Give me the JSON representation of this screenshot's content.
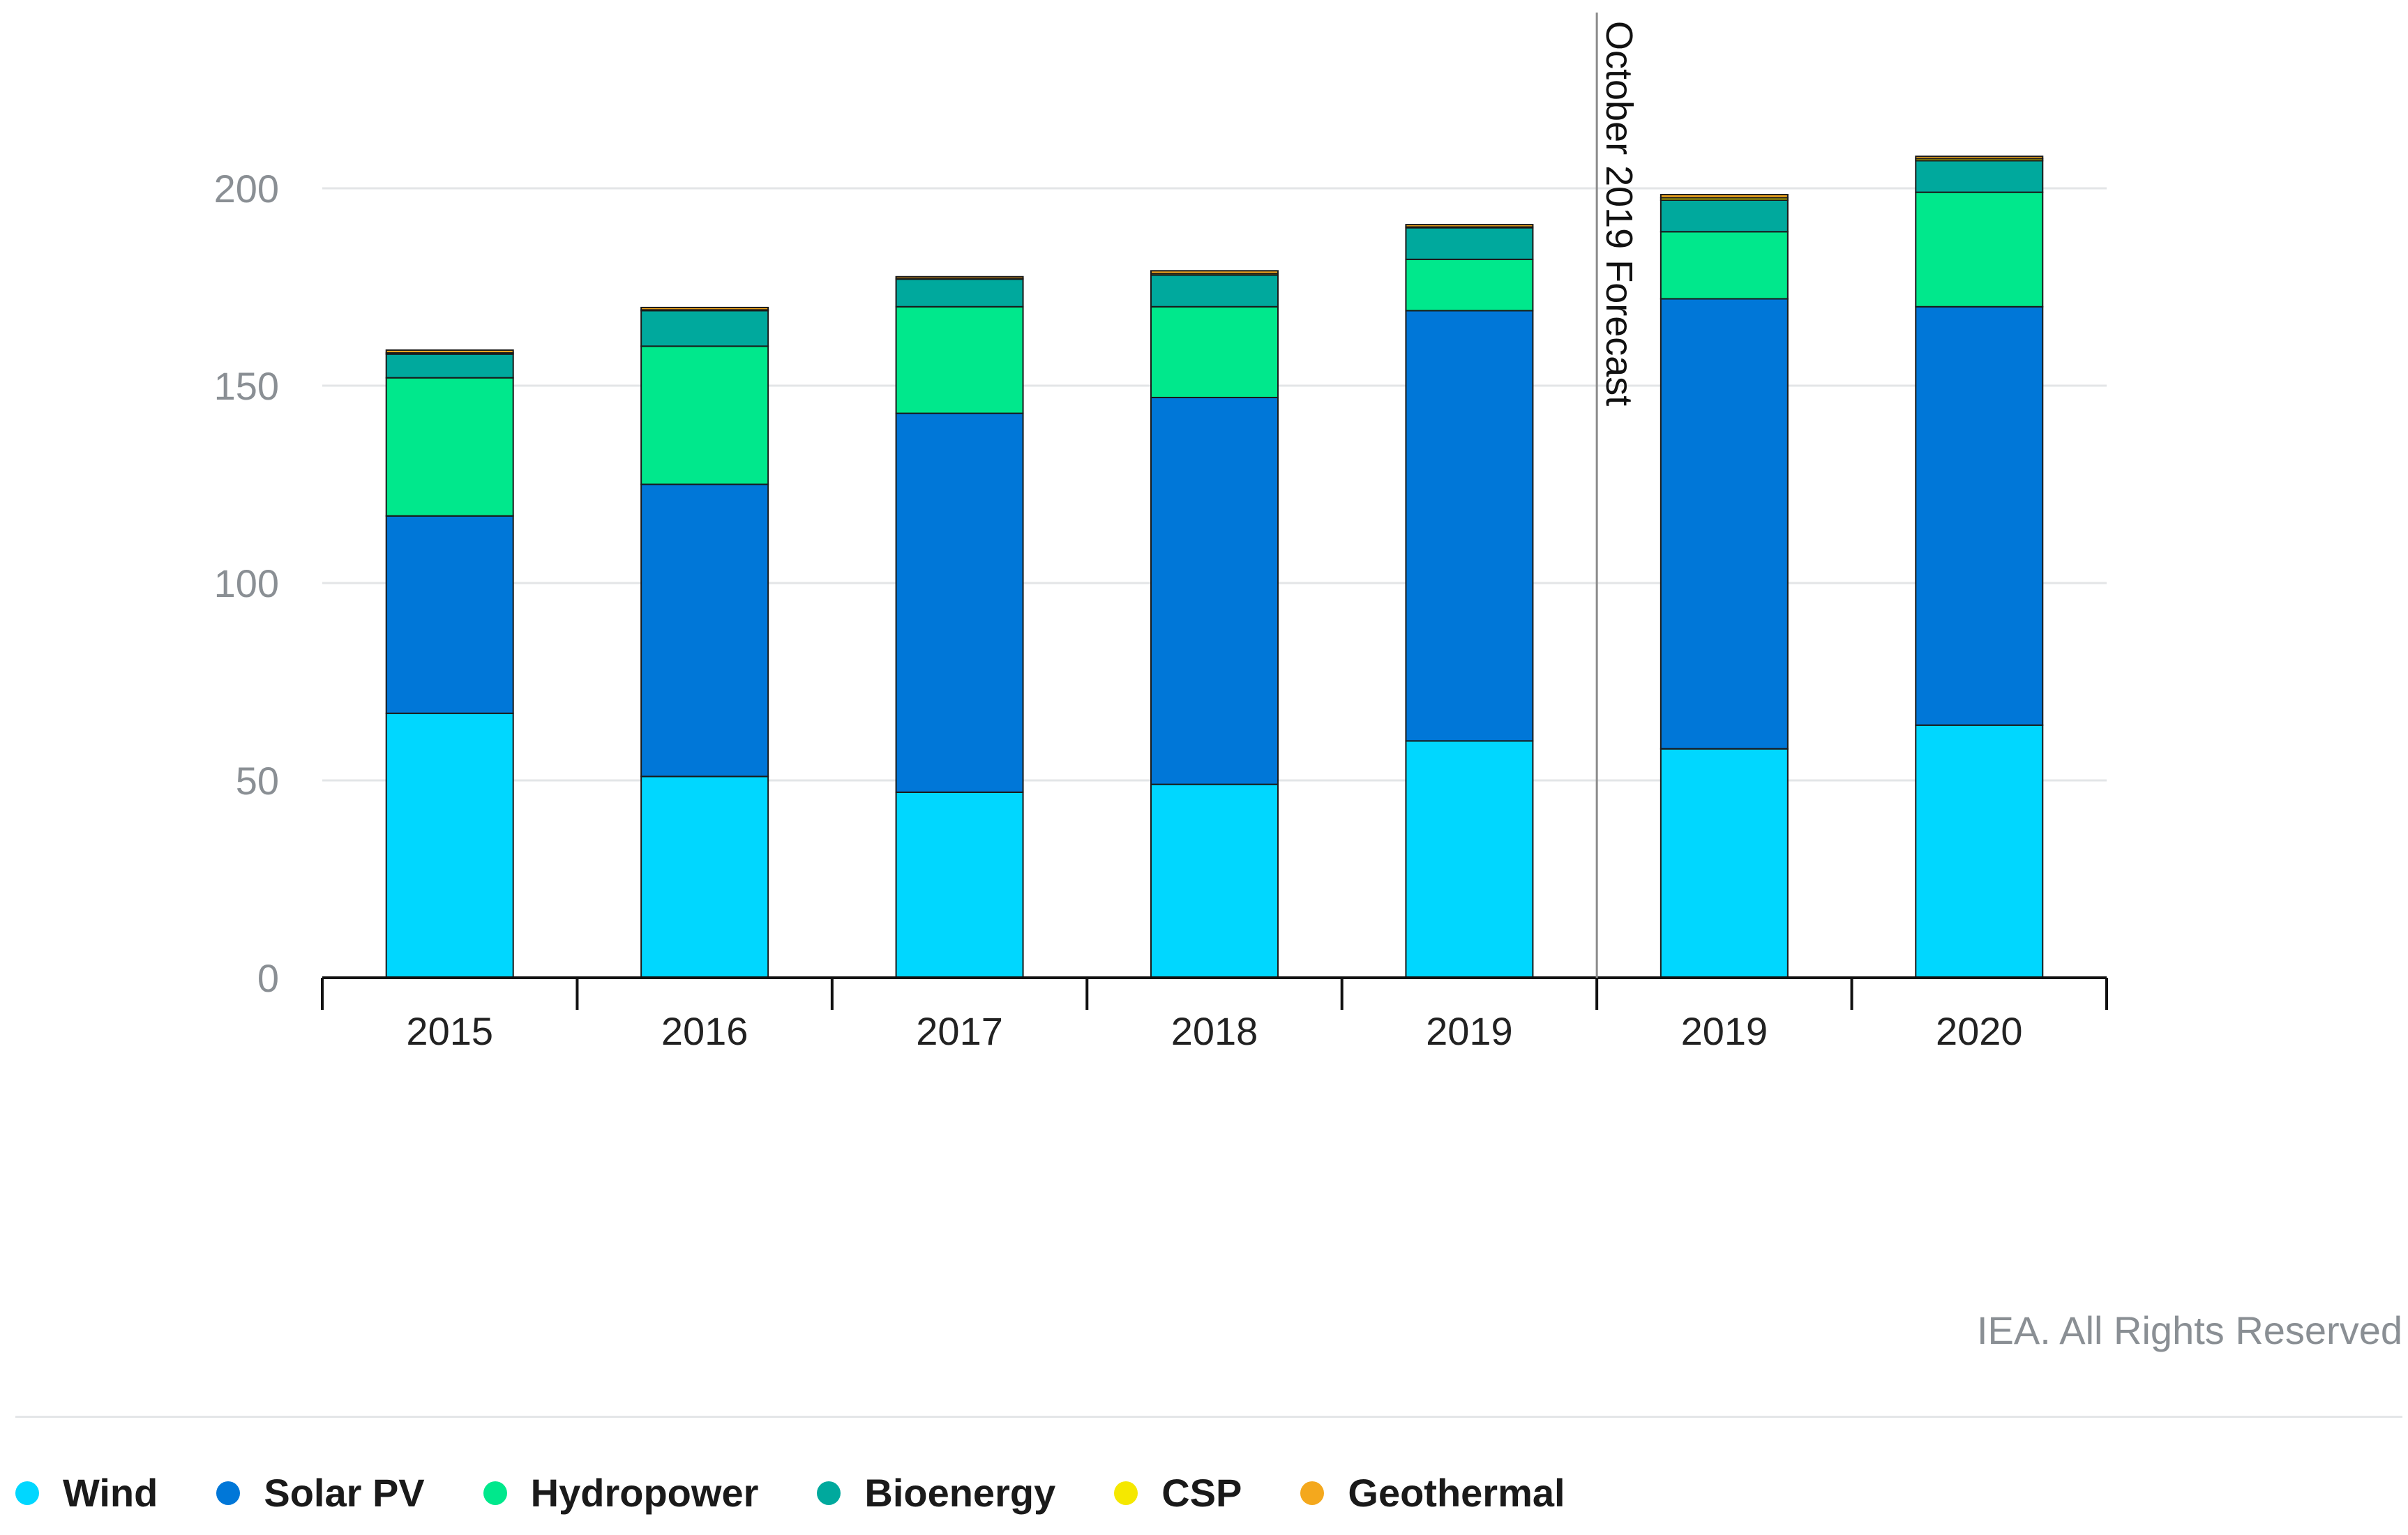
{
  "chart_data": {
    "type": "bar",
    "stacked": true,
    "title": "",
    "xlabel": "",
    "ylabel": "",
    "ylim": [
      0,
      220
    ],
    "yticks": [
      0,
      50,
      100,
      150,
      200
    ],
    "grid": true,
    "categories": [
      "2015",
      "2016",
      "2017",
      "2018",
      "2019",
      "2019",
      "2020"
    ],
    "series": [
      {
        "name": "Wind",
        "color": "#00d7ff",
        "values": [
          67,
          51,
          47,
          49,
          60,
          58,
          64
        ]
      },
      {
        "name": "Solar PV",
        "color": "#0077d8",
        "values": [
          50,
          74,
          96,
          98,
          109,
          114,
          106
        ]
      },
      {
        "name": "Hydropower",
        "color": "#00e88c",
        "values": [
          35,
          35,
          27,
          23,
          13,
          17,
          29
        ]
      },
      {
        "name": "Bioenergy",
        "color": "#00a99d",
        "values": [
          6,
          9,
          7,
          8,
          8,
          8,
          8
        ]
      },
      {
        "name": "CSP",
        "color": "#f5e800",
        "values": [
          0.3,
          0.2,
          0.1,
          0.4,
          0.2,
          0.6,
          0.5
        ]
      },
      {
        "name": "Geothermal",
        "color": "#f4a81d",
        "values": [
          0.7,
          0.6,
          0.5,
          0.7,
          0.6,
          0.8,
          0.6
        ]
      }
    ],
    "annotation": {
      "label": "October 2019 Forecast",
      "after_category_index": 4
    },
    "legend_position": "bottom-left"
  },
  "footer": {
    "credit": "IEA. All Rights Reserved"
  }
}
